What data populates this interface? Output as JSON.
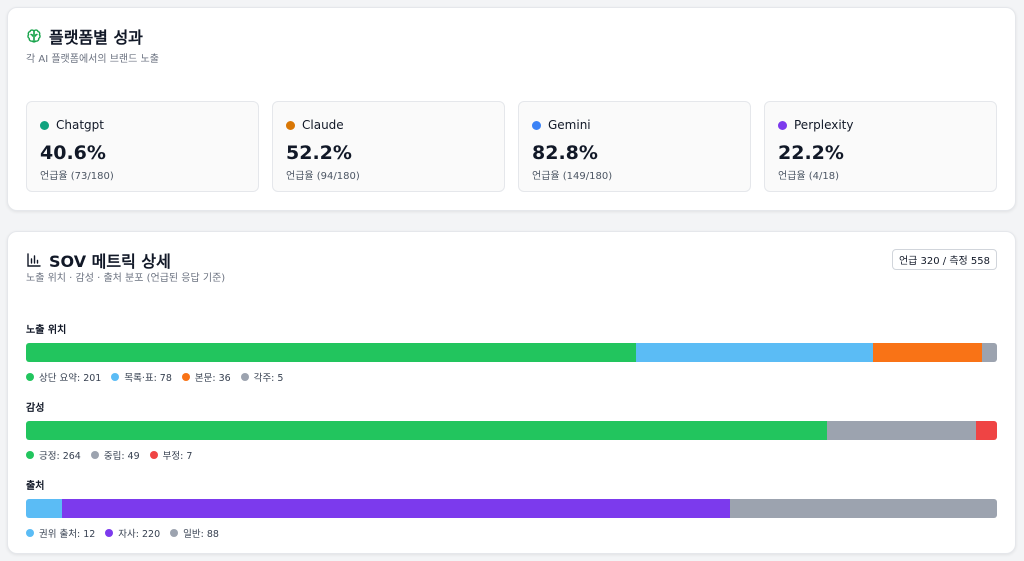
{
  "platform_section": {
    "title": "플랫폼별 성과",
    "subtitle": "각 AI 플랫폼에서의 브랜드 노출",
    "icon": "brain-icon",
    "platforms": [
      {
        "name": "Chatgpt",
        "value": "40.6%",
        "sub": "언급율 (73/180)",
        "color": "#10a37f"
      },
      {
        "name": "Claude",
        "value": "52.2%",
        "sub": "언급율 (94/180)",
        "color": "#d97706"
      },
      {
        "name": "Gemini",
        "value": "82.8%",
        "sub": "언급율 (149/180)",
        "color": "#3b82f6"
      },
      {
        "name": "Perplexity",
        "value": "22.2%",
        "sub": "언급율 (4/18)",
        "color": "#7c3aed"
      }
    ]
  },
  "sov_section": {
    "title": "SOV 메트릭 상세",
    "subtitle": "노출 위치 · 감성 · 출처 분포 (언급된 응답 기준)",
    "icon": "bar-chart-icon",
    "badge": "언급 320 / 측정 558",
    "metrics": [
      {
        "label": "노출 위치",
        "segments": [
          {
            "label": "상단 요약: 201",
            "value": 201,
            "color": "#22c55e"
          },
          {
            "label": "목록·표: 78",
            "value": 78,
            "color": "#5bbcf5"
          },
          {
            "label": "본문: 36",
            "value": 36,
            "color": "#f97316"
          },
          {
            "label": "각주: 5",
            "value": 5,
            "color": "#9ca3af"
          }
        ]
      },
      {
        "label": "감성",
        "segments": [
          {
            "label": "긍정: 264",
            "value": 264,
            "color": "#22c55e"
          },
          {
            "label": "중립: 49",
            "value": 49,
            "color": "#9ca3af"
          },
          {
            "label": "부정: 7",
            "value": 7,
            "color": "#ef4444"
          }
        ]
      },
      {
        "label": "출처",
        "segments": [
          {
            "label": "권위 출처: 12",
            "value": 12,
            "color": "#5bbcf5"
          },
          {
            "label": "자사: 220",
            "value": 220,
            "color": "#7c3aed"
          },
          {
            "label": "일반: 88",
            "value": 88,
            "color": "#9ca3af"
          }
        ]
      }
    ]
  }
}
